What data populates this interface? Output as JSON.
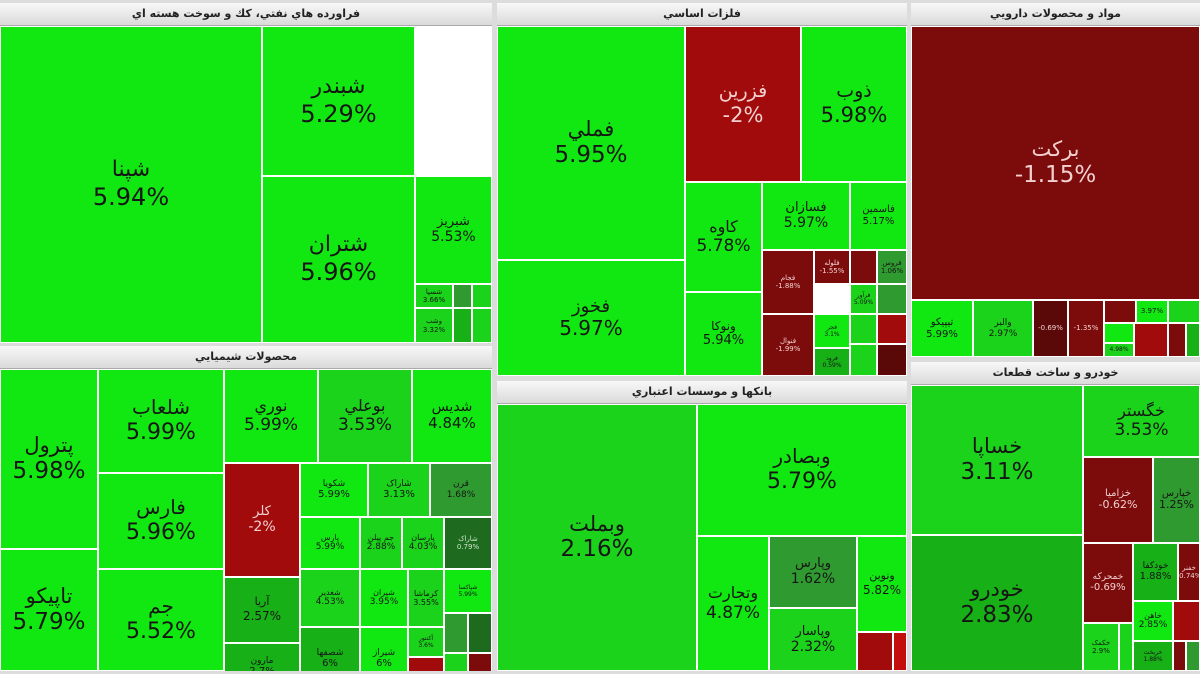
{
  "panels": [
    {
      "id": "refinery",
      "title": "فراورده هاي نفتي، كك و سوخت هسته اي",
      "tiles": [
        {
          "name": "شپنا",
          "change": "5.94%",
          "color": "g1"
        },
        {
          "name": "شبندر",
          "change": "5.29%",
          "color": "g1"
        },
        {
          "name": "شتران",
          "change": "5.96%",
          "color": "g1"
        },
        {
          "name": "شبریز",
          "change": "5.53%",
          "color": "g1"
        },
        {
          "name": "شسپا",
          "change": "3.66%",
          "color": "g2"
        },
        {
          "name": "",
          "change": "",
          "color": "g4"
        },
        {
          "name": "",
          "change": "",
          "color": "g2"
        },
        {
          "name": "وشب",
          "change": "3.32%",
          "color": "g2"
        },
        {
          "name": "",
          "change": "",
          "color": "g3"
        },
        {
          "name": "",
          "change": "",
          "color": "g2"
        }
      ]
    },
    {
      "id": "basic-metals",
      "title": "فلزات اساسي",
      "tiles": [
        {
          "name": "فملي",
          "change": "5.95%",
          "color": "g1"
        },
        {
          "name": "فزرین",
          "change": "-2%",
          "color": "r1"
        },
        {
          "name": "ذوب",
          "change": "5.98%",
          "color": "g1"
        },
        {
          "name": "فخوز",
          "change": "5.97%",
          "color": "g1"
        },
        {
          "name": "کاوه",
          "change": "5.78%",
          "color": "g1"
        },
        {
          "name": "فسازان",
          "change": "5.97%",
          "color": "g1"
        },
        {
          "name": "فاسمين",
          "change": "5.17%",
          "color": "g1"
        },
        {
          "name": "ونوکا",
          "change": "5.94%",
          "color": "g1"
        },
        {
          "name": "فجام",
          "change": "-1.88%",
          "color": "r2"
        },
        {
          "name": "فلوله",
          "change": "-1.55%",
          "color": "r2"
        },
        {
          "name": "فروس",
          "change": "1.06%",
          "color": "g4"
        },
        {
          "name": "",
          "change": "",
          "color": "r2"
        },
        {
          "name": "فرآور",
          "change": "5.09%",
          "color": "g2"
        },
        {
          "name": "",
          "change": "",
          "color": "g4"
        },
        {
          "name": "فنوال",
          "change": "-1.99%",
          "color": "r2"
        },
        {
          "name": "فجر",
          "change": "3.1%",
          "color": "g1"
        },
        {
          "name": "",
          "change": "",
          "color": "g2"
        },
        {
          "name": "",
          "change": "",
          "color": "r1"
        },
        {
          "name": "فرود",
          "change": "0.59%",
          "color": "g3"
        },
        {
          "name": "",
          "change": "",
          "color": "g2"
        },
        {
          "name": "",
          "change": "",
          "color": "r3"
        }
      ]
    },
    {
      "id": "pharma",
      "title": "مواد و محصولات دارويي",
      "tiles": [
        {
          "name": "برکت",
          "change": "-1.15%",
          "color": "r2"
        },
        {
          "name": "تیپیکو",
          "change": "5.99%",
          "color": "g1"
        },
        {
          "name": "والبر",
          "change": "2.97%",
          "color": "g2"
        },
        {
          "name": "",
          "change": "-0.69%",
          "color": "r3"
        },
        {
          "name": "",
          "change": "-1.35%",
          "color": "r2"
        },
        {
          "name": "",
          "change": "",
          "color": "r2"
        },
        {
          "name": "",
          "change": "3.97%",
          "color": "g1"
        },
        {
          "name": "",
          "change": "",
          "color": "g2"
        },
        {
          "name": "",
          "change": "",
          "color": "g1"
        },
        {
          "name": "",
          "change": "",
          "color": "r1"
        },
        {
          "name": "",
          "change": "4.98%",
          "color": "g2"
        },
        {
          "name": "",
          "change": "",
          "color": "r2"
        },
        {
          "name": "",
          "change": "",
          "color": "g3"
        }
      ]
    },
    {
      "id": "chemicals",
      "title": "محصولات شيميايي",
      "tiles": [
        {
          "name": "پترول",
          "change": "5.98%",
          "color": "g1"
        },
        {
          "name": "تاپیکو",
          "change": "5.79%",
          "color": "g1"
        },
        {
          "name": "شلعاب",
          "change": "5.99%",
          "color": "g1"
        },
        {
          "name": "فارس",
          "change": "5.96%",
          "color": "g1"
        },
        {
          "name": "جم",
          "change": "5.52%",
          "color": "g1"
        },
        {
          "name": "نوري",
          "change": "5.99%",
          "color": "g1"
        },
        {
          "name": "بوعلي",
          "change": "3.53%",
          "color": "g2"
        },
        {
          "name": "شدیس",
          "change": "4.84%",
          "color": "g1"
        },
        {
          "name": "کلر",
          "change": "-2%",
          "color": "r1"
        },
        {
          "name": "شکویا",
          "change": "5.99%",
          "color": "g1"
        },
        {
          "name": "شاراک",
          "change": "3.13%",
          "color": "g2"
        },
        {
          "name": "قرن",
          "change": "1.68%",
          "color": "g4"
        },
        {
          "name": "آریا",
          "change": "2.57%",
          "color": "g3"
        },
        {
          "name": "پارس",
          "change": "5.99%",
          "color": "g1"
        },
        {
          "name": "جم پیلن",
          "change": "2.88%",
          "color": "g2"
        },
        {
          "name": "پارسان",
          "change": "4.03%",
          "color": "g2"
        },
        {
          "name": "شاراک",
          "change": "0.79%",
          "color": "g5"
        },
        {
          "name": "مارون",
          "change": "2.7%",
          "color": "g3"
        },
        {
          "name": "شغدیر",
          "change": "4.53%",
          "color": "g2"
        },
        {
          "name": "شیران",
          "change": "3.95%",
          "color": "g1"
        },
        {
          "name": "کرماشا",
          "change": "3.55%",
          "color": "g2"
        },
        {
          "name": "شپاکسا",
          "change": "5.99%",
          "color": "g1"
        },
        {
          "name": "شصفها",
          "change": "6%",
          "color": "g3"
        },
        {
          "name": "شیراز",
          "change": "6%",
          "color": "g1"
        },
        {
          "name": "آکنتور",
          "change": "3.6%",
          "color": "g2"
        },
        {
          "name": "",
          "change": "",
          "color": "r1"
        },
        {
          "name": "",
          "change": "",
          "color": "g4"
        },
        {
          "name": "",
          "change": "",
          "color": "g5"
        },
        {
          "name": "",
          "change": "",
          "color": "g2"
        },
        {
          "name": "",
          "change": "",
          "color": "r2"
        },
        {
          "name": "",
          "change": "",
          "color": "g4"
        }
      ]
    },
    {
      "id": "banks",
      "title": "بانكها و موسسات اعتباري",
      "tiles": [
        {
          "name": "وبملت",
          "change": "2.16%",
          "color": "g2"
        },
        {
          "name": "وبصادر",
          "change": "5.79%",
          "color": "g1"
        },
        {
          "name": "وتجارت",
          "change": "4.87%",
          "color": "g1"
        },
        {
          "name": "وپارس",
          "change": "1.62%",
          "color": "g4"
        },
        {
          "name": "ونوین",
          "change": "5.82%",
          "color": "g1"
        },
        {
          "name": "وپاسار",
          "change": "2.32%",
          "color": "g2"
        },
        {
          "name": "",
          "change": "",
          "color": "r1"
        },
        {
          "name": "",
          "change": "",
          "color": "r4"
        }
      ]
    },
    {
      "id": "auto",
      "title": "خودرو و ساخت قطعات",
      "tiles": [
        {
          "name": "خساپا",
          "change": "3.11%",
          "color": "g2"
        },
        {
          "name": "خودرو",
          "change": "2.83%",
          "color": "g3"
        },
        {
          "name": "خگستر",
          "change": "3.53%",
          "color": "g2"
        },
        {
          "name": "خزامیا",
          "change": "-0.62%",
          "color": "r2"
        },
        {
          "name": "خپارس",
          "change": "1.25%",
          "color": "g4"
        },
        {
          "name": "خمحرکه",
          "change": "-0.69%",
          "color": "r2"
        },
        {
          "name": "خودکفا",
          "change": "1.88%",
          "color": "g3"
        },
        {
          "name": "خفنر",
          "change": "-0.74%",
          "color": "r2"
        },
        {
          "name": "خاهن",
          "change": "2.85%",
          "color": "g1"
        },
        {
          "name": "",
          "change": "",
          "color": "r1"
        },
        {
          "name": "خکمک",
          "change": "2.9%",
          "color": "g2"
        },
        {
          "name": "",
          "change": "",
          "color": "g2"
        },
        {
          "name": "خریخت",
          "change": "1.88%",
          "color": "g3"
        },
        {
          "name": "",
          "change": "",
          "color": "r2"
        },
        {
          "name": "",
          "change": "",
          "color": "g4"
        }
      ]
    }
  ]
}
